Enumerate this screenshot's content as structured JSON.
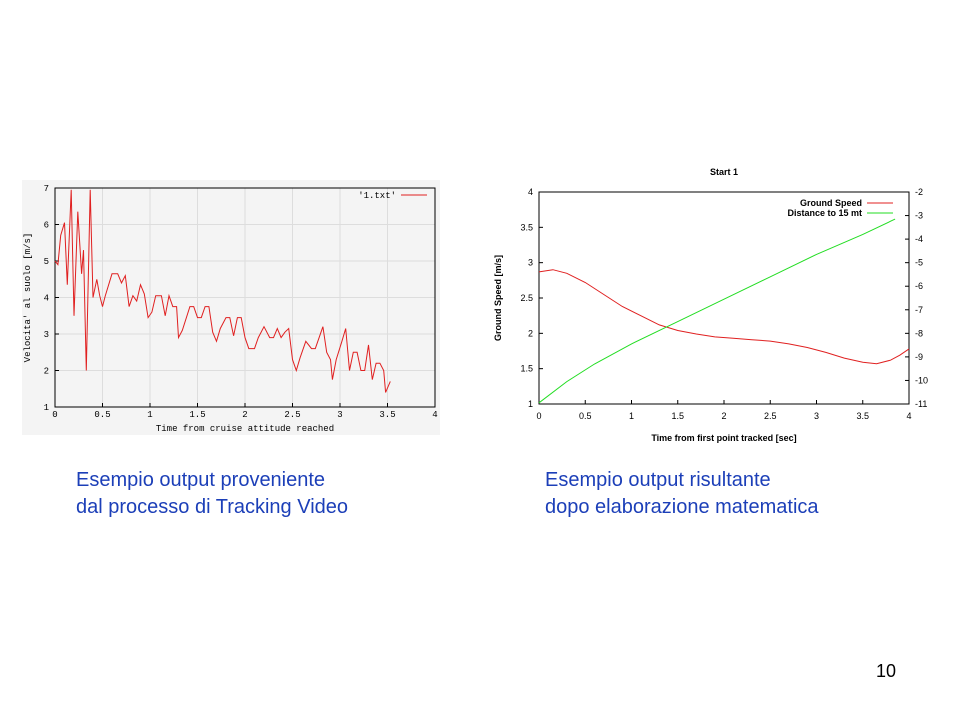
{
  "chart_data": [
    {
      "type": "line",
      "title": "",
      "xlabel": "Time from cruise attitude reached",
      "ylabel": "Velocita' al suolo [m/s]",
      "xlim": [
        0,
        4
      ],
      "ylim": [
        1,
        7
      ],
      "x_ticks": [
        "0",
        "0.5",
        "1",
        "1.5",
        "2",
        "2.5",
        "3",
        "3.5",
        "4"
      ],
      "y_ticks": [
        "1",
        "2",
        "3",
        "4",
        "5",
        "6",
        "7"
      ],
      "grid": true,
      "legend_position": "top-right",
      "series": [
        {
          "name": "'1.txt'",
          "color": "#e02020",
          "points": [
            [
              0,
              5.0
            ],
            [
              0.03,
              4.9
            ],
            [
              0.06,
              5.7
            ],
            [
              0.1,
              6.05
            ],
            [
              0.13,
              4.35
            ],
            [
              0.17,
              6.95
            ],
            [
              0.2,
              3.5
            ],
            [
              0.24,
              6.35
            ],
            [
              0.28,
              4.65
            ],
            [
              0.3,
              5.3
            ],
            [
              0.33,
              2.0
            ],
            [
              0.37,
              6.95
            ],
            [
              0.4,
              4.0
            ],
            [
              0.44,
              4.5
            ],
            [
              0.47,
              4.05
            ],
            [
              0.5,
              3.75
            ],
            [
              0.53,
              4.05
            ],
            [
              0.6,
              4.65
            ],
            [
              0.66,
              4.65
            ],
            [
              0.7,
              4.4
            ],
            [
              0.74,
              4.6
            ],
            [
              0.78,
              3.75
            ],
            [
              0.82,
              4.05
            ],
            [
              0.86,
              3.9
            ],
            [
              0.9,
              4.35
            ],
            [
              0.94,
              4.1
            ],
            [
              0.98,
              3.45
            ],
            [
              1.02,
              3.6
            ],
            [
              1.06,
              4.05
            ],
            [
              1.12,
              4.05
            ],
            [
              1.16,
              3.5
            ],
            [
              1.2,
              4.05
            ],
            [
              1.24,
              3.75
            ],
            [
              1.28,
              3.75
            ],
            [
              1.3,
              2.9
            ],
            [
              1.34,
              3.1
            ],
            [
              1.42,
              3.75
            ],
            [
              1.46,
              3.75
            ],
            [
              1.5,
              3.45
            ],
            [
              1.54,
              3.45
            ],
            [
              1.58,
              3.75
            ],
            [
              1.62,
              3.75
            ],
            [
              1.66,
              3.05
            ],
            [
              1.7,
              2.8
            ],
            [
              1.74,
              3.15
            ],
            [
              1.8,
              3.45
            ],
            [
              1.84,
              3.45
            ],
            [
              1.88,
              2.95
            ],
            [
              1.92,
              3.45
            ],
            [
              1.96,
              3.45
            ],
            [
              2.0,
              2.9
            ],
            [
              2.04,
              2.6
            ],
            [
              2.1,
              2.6
            ],
            [
              2.14,
              2.9
            ],
            [
              2.2,
              3.2
            ],
            [
              2.26,
              2.9
            ],
            [
              2.3,
              2.9
            ],
            [
              2.34,
              3.15
            ],
            [
              2.38,
              2.9
            ],
            [
              2.42,
              3.05
            ],
            [
              2.46,
              3.15
            ],
            [
              2.5,
              2.3
            ],
            [
              2.54,
              2.0
            ],
            [
              2.58,
              2.35
            ],
            [
              2.64,
              2.8
            ],
            [
              2.7,
              2.6
            ],
            [
              2.74,
              2.6
            ],
            [
              2.82,
              3.2
            ],
            [
              2.86,
              2.5
            ],
            [
              2.9,
              2.3
            ],
            [
              2.92,
              1.75
            ],
            [
              2.96,
              2.3
            ],
            [
              3.02,
              2.8
            ],
            [
              3.06,
              3.15
            ],
            [
              3.1,
              2.0
            ],
            [
              3.14,
              2.5
            ],
            [
              3.18,
              2.5
            ],
            [
              3.22,
              2.0
            ],
            [
              3.26,
              2.0
            ],
            [
              3.3,
              2.7
            ],
            [
              3.34,
              1.75
            ],
            [
              3.38,
              2.2
            ],
            [
              3.42,
              2.2
            ],
            [
              3.46,
              2.0
            ],
            [
              3.48,
              1.4
            ],
            [
              3.53,
              1.7
            ]
          ]
        }
      ]
    },
    {
      "type": "line",
      "title": "Start 1",
      "xlabel": "Time from first point tracked [sec]",
      "ylabel": "Ground Speed [m/s]",
      "xlim": [
        0,
        4
      ],
      "ylim": [
        1,
        4
      ],
      "y2lim": [
        -11,
        -2
      ],
      "x_ticks": [
        "0",
        "0.5",
        "1",
        "1.5",
        "2",
        "2.5",
        "3",
        "3.5",
        "4"
      ],
      "y_ticks": [
        "1",
        "1.5",
        "2",
        "2.5",
        "3",
        "3.5",
        "4"
      ],
      "y2_ticks": [
        "-2",
        "-3",
        "-4",
        "-5",
        "-6",
        "-7",
        "-8",
        "-9",
        "-10",
        "-11"
      ],
      "grid": false,
      "legend_position": "top-right",
      "series": [
        {
          "name": "Ground Speed",
          "axis": "left",
          "color": "#e02020",
          "points": [
            [
              0,
              2.87
            ],
            [
              0.15,
              2.9
            ],
            [
              0.3,
              2.85
            ],
            [
              0.5,
              2.72
            ],
            [
              0.7,
              2.55
            ],
            [
              0.9,
              2.38
            ],
            [
              1.1,
              2.25
            ],
            [
              1.3,
              2.12
            ],
            [
              1.5,
              2.04
            ],
            [
              1.7,
              1.99
            ],
            [
              1.9,
              1.95
            ],
            [
              2.1,
              1.93
            ],
            [
              2.3,
              1.91
            ],
            [
              2.5,
              1.89
            ],
            [
              2.7,
              1.85
            ],
            [
              2.9,
              1.8
            ],
            [
              3.1,
              1.73
            ],
            [
              3.3,
              1.65
            ],
            [
              3.5,
              1.59
            ],
            [
              3.65,
              1.57
            ],
            [
              3.8,
              1.62
            ],
            [
              3.9,
              1.69
            ],
            [
              4,
              1.78
            ]
          ]
        },
        {
          "name": "Distance to 15 mt",
          "axis": "right",
          "color": "#22dd22",
          "points": [
            [
              0,
              -10.95
            ],
            [
              0.3,
              -10.05
            ],
            [
              0.6,
              -9.3
            ],
            [
              1.0,
              -8.45
            ],
            [
              1.5,
              -7.5
            ],
            [
              2.0,
              -6.55
            ],
            [
              2.5,
              -5.6
            ],
            [
              3.0,
              -4.65
            ],
            [
              3.5,
              -3.8
            ],
            [
              3.85,
              -3.15
            ]
          ]
        }
      ]
    }
  ],
  "captions": {
    "left_line1": "Esempio output proveniente",
    "left_line2": "dal processo di Tracking Video",
    "right_line1": "Esempio output risultante",
    "right_line2": "dopo elaborazione matematica"
  },
  "page_number": "10"
}
